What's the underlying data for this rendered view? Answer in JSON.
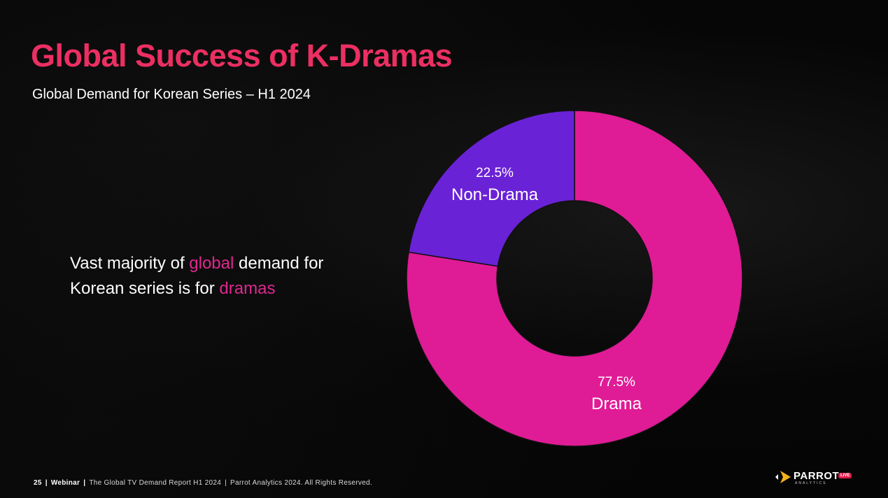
{
  "slide": {
    "title": "Global Success of K-Dramas",
    "subtitle": "Global Demand for Korean Series – H1 2024",
    "callout": {
      "part1": "Vast majority of ",
      "highlight1": "global",
      "part2": " demand for",
      "part3": "Korean series is for ",
      "highlight2": "dramas"
    }
  },
  "colors": {
    "title": "#ec2f63",
    "highlight": "#e1278f",
    "drama": "#e01b96",
    "non_drama": "#6a22d6",
    "background": "#050505"
  },
  "chart_data": {
    "type": "pie",
    "title": "Global Demand for Korean Series – H1 2024",
    "donut": true,
    "slices": [
      {
        "label": "Drama",
        "value": 77.5,
        "display": "77.5%",
        "color": "#e01b96"
      },
      {
        "label": "Non-Drama",
        "value": 22.5,
        "display": "22.5%",
        "color": "#6a22d6"
      }
    ]
  },
  "footer": {
    "page_number": "25",
    "section": "Webinar",
    "report": "The Global TV Demand Report H1 2024",
    "copyright": "Parrot Analytics 2024. All Rights Reserved."
  },
  "logo": {
    "word": "PARROT",
    "sub": "ANALYTICS",
    "badge": "LIVE"
  }
}
